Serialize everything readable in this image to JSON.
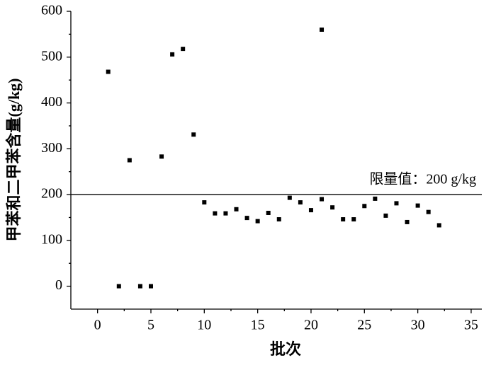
{
  "chart_data": {
    "type": "scatter",
    "x_label": "批次",
    "y_label": "甲苯和二甲苯含量(g/kg)",
    "x": [
      1,
      2,
      3,
      4,
      5,
      6,
      7,
      8,
      9,
      10,
      11,
      12,
      13,
      14,
      15,
      16,
      17,
      18,
      19,
      20,
      21,
      21,
      22,
      23,
      24,
      25,
      26,
      27,
      28,
      29,
      30,
      31,
      32
    ],
    "values": [
      468,
      0,
      275,
      0,
      0,
      283,
      506,
      518,
      331,
      183,
      159,
      159,
      168,
      149,
      142,
      160,
      146,
      193,
      183,
      166,
      560,
      190,
      172,
      146,
      146,
      175,
      191,
      154,
      181,
      140,
      176,
      162,
      133
    ],
    "color": "#000000",
    "xlim": [
      -2.5,
      36
    ],
    "xticks": [
      0,
      5,
      10,
      15,
      20,
      25,
      30,
      35
    ],
    "ylim": [
      -50,
      600
    ],
    "yticks": [
      0,
      100,
      200,
      300,
      400,
      500,
      600
    ],
    "reference_line": {
      "value": 200,
      "label": "限量值：200 g/kg"
    }
  }
}
